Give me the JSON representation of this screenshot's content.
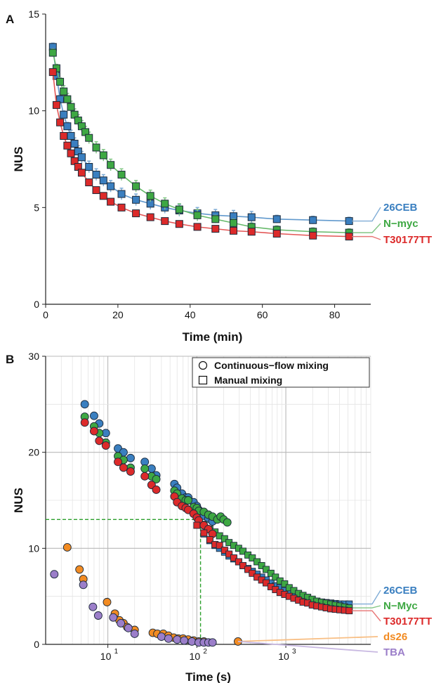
{
  "chart_data": [
    {
      "panel": "A",
      "type": "line",
      "xlabel": "Time (min)",
      "ylabel": "NUS",
      "xlim": [
        0,
        90
      ],
      "ylim": [
        0,
        15
      ],
      "xticks": [
        "0",
        "20",
        "40",
        "60",
        "80"
      ],
      "yticks": [
        "0",
        "5",
        "10",
        "15"
      ],
      "grid": false,
      "marker": "square",
      "series": [
        {
          "name": "26CEB",
          "color": "#3a7fc0",
          "x": [
            2,
            3,
            4,
            5,
            6,
            7,
            8,
            9,
            10,
            12,
            14,
            16,
            18,
            21,
            25,
            29,
            33,
            37,
            42,
            47,
            52,
            57,
            64,
            74,
            84
          ],
          "y": [
            13.3,
            11.8,
            10.6,
            9.8,
            9.2,
            8.7,
            8.3,
            7.9,
            7.6,
            7.1,
            6.7,
            6.4,
            6.1,
            5.7,
            5.4,
            5.2,
            5.0,
            4.85,
            4.7,
            4.6,
            4.55,
            4.5,
            4.4,
            4.35,
            4.3
          ],
          "err": [
            0.2,
            0.2,
            0.2,
            0.2,
            0.2,
            0.3,
            0.3,
            0.3,
            0.3,
            0.3,
            0.3,
            0.3,
            0.3,
            0.3,
            0.3,
            0.3,
            0.3,
            0.3,
            0.3,
            0.3,
            0.3,
            0.3,
            0.2,
            0.2,
            0.2
          ]
        },
        {
          "name": "N−myc",
          "color": "#3ea843",
          "x": [
            2,
            3,
            4,
            5,
            6,
            7,
            8,
            9,
            10,
            11,
            12,
            14,
            16,
            18,
            21,
            25,
            29,
            33,
            37,
            42,
            47,
            52,
            57,
            64,
            74,
            84
          ],
          "y": [
            13.0,
            12.2,
            11.5,
            11.0,
            10.6,
            10.2,
            9.8,
            9.5,
            9.2,
            8.9,
            8.6,
            8.1,
            7.7,
            7.2,
            6.7,
            6.1,
            5.6,
            5.2,
            4.9,
            4.6,
            4.4,
            4.2,
            4.0,
            3.85,
            3.75,
            3.7
          ],
          "err": [
            0.2,
            0.2,
            0.2,
            0.3,
            0.3,
            0.3,
            0.3,
            0.3,
            0.3,
            0.3,
            0.3,
            0.3,
            0.3,
            0.3,
            0.3,
            0.3,
            0.3,
            0.3,
            0.3,
            0.3,
            0.2,
            0.2,
            0.2,
            0.2,
            0.2,
            0.2
          ]
        },
        {
          "name": "T30177TT",
          "color": "#dc2a2a",
          "x": [
            2,
            3,
            4,
            5,
            6,
            7,
            8,
            9,
            10,
            12,
            14,
            16,
            18,
            21,
            25,
            29,
            33,
            37,
            42,
            47,
            52,
            57,
            64,
            74,
            84
          ],
          "y": [
            12.0,
            10.3,
            9.4,
            8.7,
            8.2,
            7.8,
            7.4,
            7.1,
            6.8,
            6.3,
            5.9,
            5.6,
            5.3,
            5.0,
            4.7,
            4.5,
            4.3,
            4.15,
            4.0,
            3.9,
            3.8,
            3.75,
            3.65,
            3.55,
            3.5
          ],
          "err": [
            0.15,
            0.15,
            0.15,
            0.15,
            0.15,
            0.15,
            0.15,
            0.15,
            0.15,
            0.15,
            0.15,
            0.15,
            0.15,
            0.15,
            0.15,
            0.15,
            0.15,
            0.15,
            0.15,
            0.15,
            0.15,
            0.15,
            0.15,
            0.15,
            0.15
          ]
        }
      ]
    },
    {
      "panel": "B",
      "type": "scatter",
      "xlabel": "Time (s)",
      "ylabel": "NUS",
      "xscale": "log",
      "xlim": [
        2,
        9000
      ],
      "ylim": [
        0,
        30
      ],
      "xticks": [
        "10",
        "10",
        "10"
      ],
      "xtick_exponents": [
        "1",
        "2",
        "3"
      ],
      "yticks": [
        "0",
        "10",
        "20",
        "30"
      ],
      "grid": true,
      "legend": {
        "placement": "top-right",
        "entries": [
          "Continuous−flow mixing",
          "Manual mixing"
        ]
      },
      "reference": {
        "x": 110,
        "y": 13,
        "color": "#2ca02c"
      },
      "series": [
        {
          "name": "26CEB",
          "color": "#3a7fc0",
          "circles": {
            "x": [
              5.5,
              7,
              8,
              9.5,
              13,
              15,
              18,
              26,
              31,
              35,
              56,
              60,
              68,
              75,
              80,
              92,
              100,
              105,
              120,
              135,
              150
            ],
            "y": [
              25.0,
              23.8,
              23.0,
              22.0,
              20.4,
              20.0,
              19.4,
              19.0,
              18.3,
              17.6,
              16.7,
              16.3,
              15.7,
              15.3,
              15.3,
              14.8,
              14.4,
              14.0,
              13.4,
              13.1,
              12.8
            ]
          },
          "squares": {
            "x": [
              120,
              140,
              160,
              180,
              205,
              230,
              260,
              295,
              330,
              375,
              420,
              475,
              535,
              600,
              680,
              765,
              860,
              970,
              1090,
              1230,
              1390,
              1560,
              1760,
              1980,
              2230,
              2520,
              2840,
              3200,
              3600,
              4050,
              4570,
              5150
            ],
            "y": [
              11.5,
              10.8,
              10.3,
              10.0,
              9.6,
              9.2,
              8.9,
              8.6,
              8.2,
              7.9,
              7.6,
              7.3,
              7.0,
              6.7,
              6.4,
              6.1,
              5.9,
              5.6,
              5.4,
              5.2,
              5.0,
              4.9,
              4.7,
              4.6,
              4.5,
              4.4,
              4.35,
              4.3,
              4.25,
              4.2,
              4.2,
              4.2
            ]
          }
        },
        {
          "name": "N−Myc",
          "color": "#3ea843",
          "circles": {
            "x": [
              5.5,
              7,
              8,
              9.5,
              13,
              15,
              18,
              26,
              31,
              35,
              56,
              60,
              68,
              75,
              80,
              92,
              100,
              105,
              120,
              135,
              150,
              170,
              185,
              200,
              220
            ],
            "y": [
              23.7,
              22.7,
              22.0,
              21.0,
              19.6,
              19.2,
              18.4,
              18.3,
              17.5,
              17.2,
              16.0,
              15.7,
              15.2,
              15.0,
              15.0,
              14.3,
              14.2,
              13.9,
              13.8,
              13.5,
              13.3,
              13.0,
              13.3,
              13.0,
              12.7
            ]
          },
          "squares": {
            "x": [
              120,
              140,
              160,
              180,
              205,
              230,
              260,
              295,
              330,
              375,
              420,
              475,
              535,
              600,
              680,
              765,
              860,
              970,
              1090,
              1230,
              1390,
              1560,
              1760,
              1980,
              2230,
              2520,
              2840,
              3200,
              3600,
              4050,
              4570,
              5150
            ],
            "y": [
              12.5,
              12.0,
              11.7,
              11.3,
              11.0,
              10.6,
              10.3,
              10.0,
              9.7,
              9.3,
              9.0,
              8.6,
              8.2,
              7.8,
              7.4,
              7.0,
              6.6,
              6.3,
              5.9,
              5.6,
              5.3,
              5.1,
              4.9,
              4.7,
              4.5,
              4.4,
              4.3,
              4.2,
              4.1,
              4.0,
              3.9,
              3.8
            ]
          }
        },
        {
          "name": "T30177TT",
          "color": "#dc2a2a",
          "circles": {
            "x": [
              5.5,
              7,
              8,
              9.5,
              13,
              15,
              18,
              26,
              31,
              35,
              56,
              60,
              68,
              75,
              80,
              92,
              100,
              105,
              120,
              135,
              150
            ],
            "y": [
              23.1,
              22.2,
              21.2,
              20.7,
              19.0,
              18.4,
              18.0,
              17.5,
              16.6,
              16.1,
              15.4,
              14.8,
              14.4,
              14.2,
              14.0,
              13.6,
              13.2,
              12.9,
              12.4,
              12.0,
              11.5
            ]
          },
          "squares": {
            "x": [
              100,
              120,
              140,
              160,
              180,
              205,
              230,
              260,
              295,
              330,
              375,
              420,
              475,
              535,
              600,
              680,
              765,
              860,
              970,
              1090,
              1230,
              1390,
              1560,
              1760,
              1980,
              2230,
              2520,
              2840,
              3200,
              3600,
              4050,
              4570,
              5150
            ],
            "y": [
              12.4,
              11.6,
              10.9,
              10.4,
              10.3,
              9.8,
              9.4,
              9.0,
              8.6,
              8.2,
              7.8,
              7.4,
              7.0,
              6.7,
              6.4,
              6.0,
              5.7,
              5.4,
              5.2,
              5.0,
              4.8,
              4.6,
              4.4,
              4.3,
              4.1,
              4.0,
              3.9,
              3.8,
              3.7,
              3.65,
              3.6,
              3.55,
              3.5
            ]
          }
        },
        {
          "name": "ds26",
          "color": "#f28b22",
          "circles": {
            "x": [
              3.5,
              4.8,
              5.3,
              9.8,
              12,
              13.5,
              15,
              16.5,
              20,
              32,
              36,
              42,
              48,
              55,
              62,
              70,
              80,
              92,
              105,
              120,
              290
            ],
            "y": [
              10.1,
              7.8,
              6.8,
              4.4,
              3.2,
              2.5,
              2.2,
              1.8,
              1.5,
              1.2,
              1.1,
              1.1,
              0.9,
              0.7,
              0.6,
              0.6,
              0.5,
              0.4,
              0.3,
              0.3,
              0.3
            ]
          },
          "line": {
            "x": [
              290,
              9000
            ],
            "y": [
              0.3,
              1.0
            ]
          }
        },
        {
          "name": "TBA",
          "color": "#9b7ec9",
          "circles": {
            "x": [
              2.5,
              5.3,
              6.8,
              7.8,
              11.5,
              14,
              17,
              20,
              40,
              48,
              60,
              72,
              88,
              105,
              120,
              135,
              150
            ],
            "y": [
              7.3,
              6.2,
              3.9,
              3.0,
              2.8,
              2.2,
              1.7,
              1.1,
              0.8,
              0.6,
              0.5,
              0.4,
              0.3,
              0.2,
              0.2,
              0.2,
              0.2
            ]
          },
          "line": {
            "x": [
              290,
              9000
            ],
            "y": [
              0.3,
              -1.0
            ]
          }
        }
      ]
    }
  ]
}
